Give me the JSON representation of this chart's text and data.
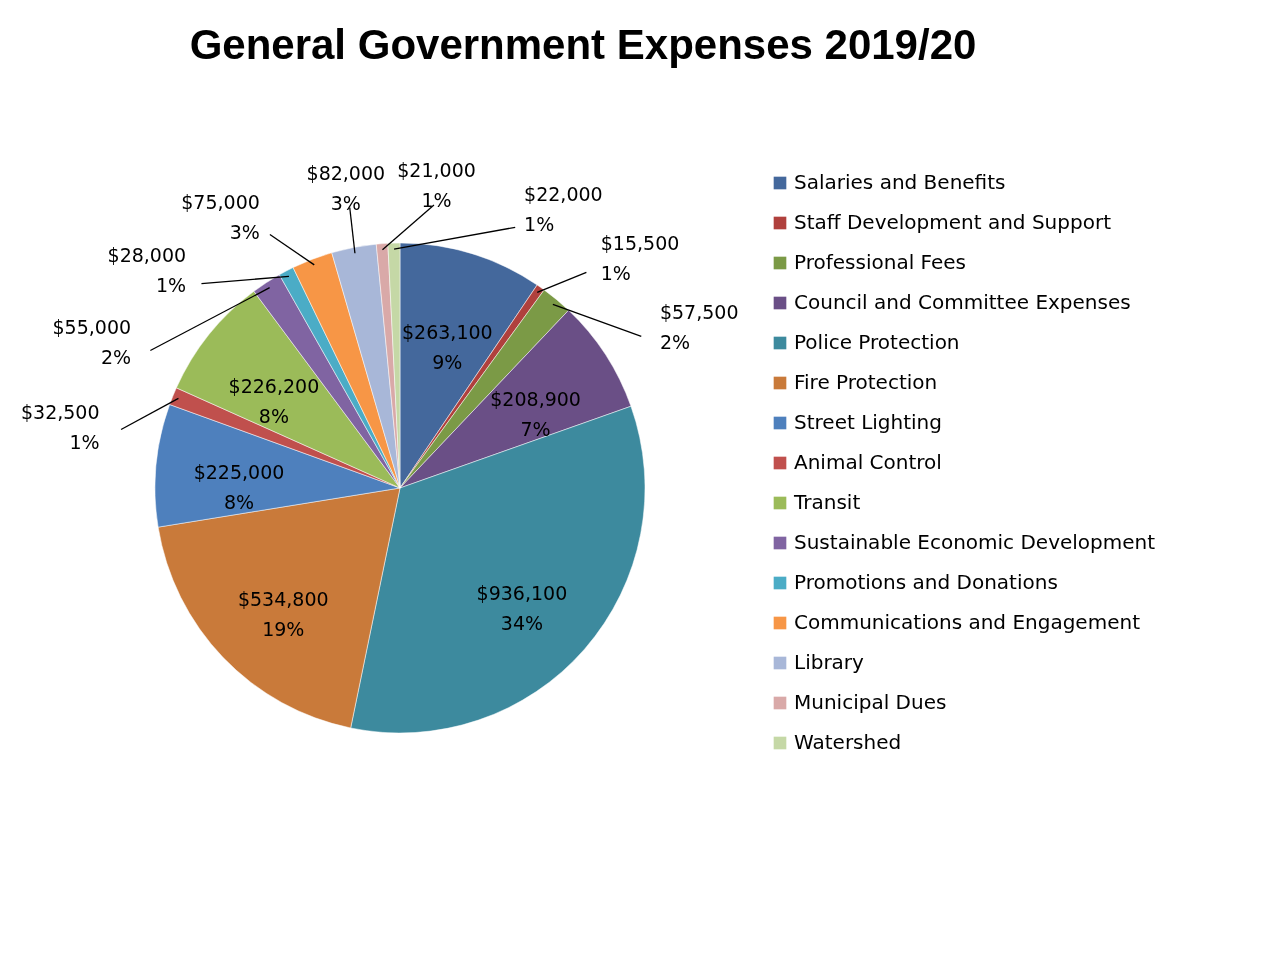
{
  "chart_data": {
    "type": "pie",
    "title": "General Government Expenses 2019/20",
    "categories": [
      "Salaries and Benefits",
      "Staff Development and Support",
      "Professional Fees",
      "Council and Committee Expenses",
      "Police Protection",
      "Fire Protection",
      "Street Lighting",
      "Animal Control",
      "Transit",
      "Sustainable Economic Development",
      "Promotions and Donations",
      "Communications and Engagement",
      "Library",
      "Municipal Dues",
      "Watershed"
    ],
    "values": [
      263100,
      15500,
      57500,
      208900,
      936100,
      534800,
      225000,
      32500,
      226200,
      55000,
      28000,
      75000,
      82000,
      21000,
      22000
    ],
    "colors": [
      "#44689c",
      "#b0403d",
      "#7b9a46",
      "#6a4f86",
      "#3d8a9e",
      "#c97a3a",
      "#4e80bd",
      "#c0504d",
      "#9bbb59",
      "#8064a2",
      "#4bacc6",
      "#f79646",
      "#a8b7d8",
      "#d9a9a8",
      "#c5d8a6"
    ],
    "value_labels": [
      "$263,100\n9%",
      "$15,500\n1%",
      "$57,500\n2%",
      "$208,900\n7%",
      "$936,100\n34%",
      "$534,800\n19%",
      "$225,000\n8%",
      "$32,500\n1%",
      "$226,200\n8%",
      "$55,000\n2%",
      "$28,000\n1%",
      "$75,000\n3%",
      "$82,000\n3%",
      "$21,000\n1%",
      "$22,000\n1%"
    ],
    "legend": "right"
  }
}
